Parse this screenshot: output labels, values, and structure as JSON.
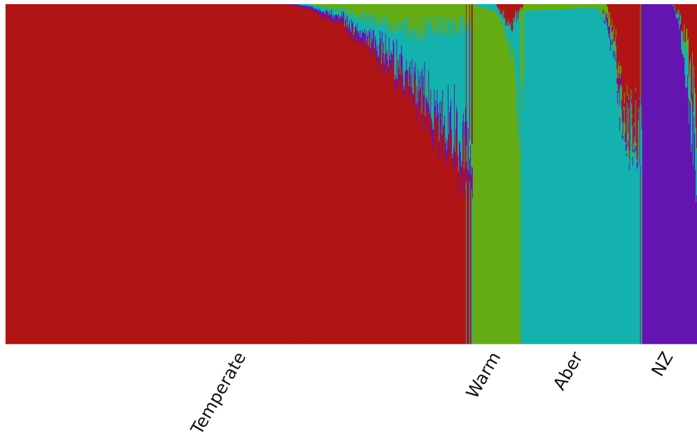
{
  "chart_data": {
    "type": "bar",
    "stacked": true,
    "orientation": "vertical",
    "ylim": [
      0,
      1
    ],
    "grid": false,
    "legend": "none",
    "title": "",
    "xlabel": "",
    "ylabel": "",
    "cluster_colors": {
      "k1": "#b01414",
      "k2": "#65ac14",
      "k3": "#14b2ae",
      "k4": "#6414b0"
    },
    "group_labels": [
      "Temperate",
      "Warm",
      "Aber",
      "NZ"
    ],
    "groups": [
      {
        "name": "Temperate",
        "n_individuals": 673,
        "profile": {
          "k1": [
            [
              0.0,
              1.0
            ],
            [
              0.6,
              1.0
            ],
            [
              0.72,
              0.97
            ],
            [
              0.8,
              0.88
            ],
            [
              0.86,
              0.8
            ],
            [
              0.9,
              0.72
            ],
            [
              0.94,
              0.63
            ],
            [
              0.98,
              0.55
            ],
            [
              1.0,
              0.45
            ]
          ],
          "k2": [
            [
              0.0,
              0.0
            ],
            [
              0.65,
              0.0
            ],
            [
              0.72,
              0.02
            ],
            [
              0.8,
              0.05
            ],
            [
              0.88,
              0.08
            ],
            [
              1.0,
              0.06
            ]
          ],
          "k3": [
            [
              0.0,
              0.0
            ],
            [
              0.62,
              0.0
            ],
            [
              0.72,
              0.02
            ],
            [
              0.8,
              0.08
            ],
            [
              0.88,
              0.15
            ],
            [
              1.0,
              0.42
            ]
          ],
          "k4": [
            [
              0.0,
              0.0
            ],
            [
              0.6,
              0.0
            ],
            [
              1.0,
              0.07
            ]
          ]
        }
      },
      {
        "name": "Warm",
        "n_individuals": 74,
        "profile": {
          "k1": [
            [
              0.0,
              0.0
            ],
            [
              0.45,
              0.0
            ],
            [
              0.55,
              0.03
            ],
            [
              0.75,
              0.06
            ],
            [
              1.0,
              0.0
            ]
          ],
          "k2": [
            [
              0.0,
              1.0
            ],
            [
              0.6,
              0.97
            ],
            [
              0.8,
              0.85
            ],
            [
              0.9,
              0.6
            ],
            [
              1.0,
              0.2
            ]
          ],
          "k3": [
            [
              0.0,
              0.0
            ],
            [
              0.6,
              0.03
            ],
            [
              0.8,
              0.09
            ],
            [
              0.9,
              0.35
            ],
            [
              1.0,
              0.8
            ]
          ],
          "k4": [
            [
              0.0,
              0.0
            ],
            [
              1.0,
              0.0
            ]
          ]
        }
      },
      {
        "name": "Aber",
        "n_individuals": 170,
        "profile": {
          "k1": [
            [
              0.0,
              0.0
            ],
            [
              0.7,
              0.0
            ],
            [
              0.76,
              0.08
            ],
            [
              0.8,
              0.2
            ],
            [
              0.84,
              0.34
            ],
            [
              0.9,
              0.36
            ],
            [
              0.96,
              0.39
            ],
            [
              1.0,
              0.42
            ]
          ],
          "k2": [
            [
              0.0,
              0.02
            ],
            [
              0.6,
              0.01
            ],
            [
              0.7,
              0.04
            ],
            [
              0.8,
              0.03
            ],
            [
              1.0,
              0.0
            ]
          ],
          "k3": [
            [
              0.0,
              0.98
            ],
            [
              0.6,
              0.99
            ],
            [
              0.7,
              0.96
            ],
            [
              0.8,
              0.74
            ],
            [
              0.9,
              0.62
            ],
            [
              1.0,
              0.56
            ]
          ],
          "k4": [
            [
              0.0,
              0.0
            ],
            [
              0.65,
              0.0
            ],
            [
              0.72,
              0.03
            ],
            [
              0.8,
              0.03
            ],
            [
              0.9,
              0.02
            ],
            [
              1.0,
              0.02
            ]
          ]
        }
      },
      {
        "name": "NZ",
        "n_individuals": 79,
        "profile": {
          "k1": [
            [
              0.0,
              0.0
            ],
            [
              0.55,
              0.0
            ],
            [
              0.7,
              0.04
            ],
            [
              0.85,
              0.15
            ],
            [
              1.0,
              0.3
            ]
          ],
          "k2": [
            [
              0.0,
              0.0
            ],
            [
              0.7,
              0.0
            ],
            [
              0.8,
              0.03
            ],
            [
              1.0,
              0.02
            ]
          ],
          "k3": [
            [
              0.0,
              0.0
            ],
            [
              0.55,
              0.0
            ],
            [
              0.75,
              0.05
            ],
            [
              0.9,
              0.15
            ],
            [
              1.0,
              0.2
            ]
          ],
          "k4": [
            [
              0.0,
              1.0
            ],
            [
              0.55,
              1.0
            ],
            [
              0.75,
              0.89
            ],
            [
              0.85,
              0.67
            ],
            [
              1.0,
              0.48
            ]
          ]
        }
      }
    ]
  }
}
